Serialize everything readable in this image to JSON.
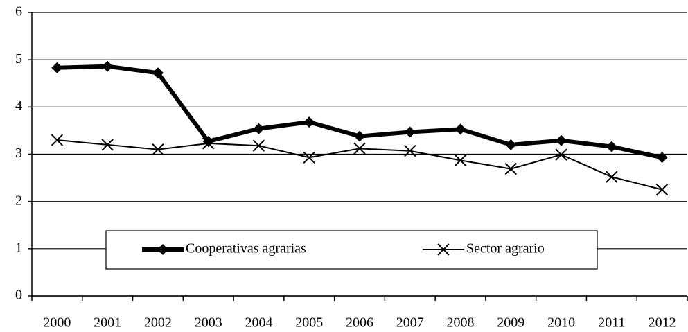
{
  "chart_data": {
    "type": "line",
    "categories": [
      "2000",
      "2001",
      "2002",
      "2003",
      "2004",
      "2005",
      "2006",
      "2007",
      "2008",
      "2009",
      "2010",
      "2011",
      "2012"
    ],
    "series": [
      {
        "name": "Cooperativas agrarias",
        "color": "#000000",
        "marker": "diamond",
        "values": [
          4.83,
          4.86,
          4.72,
          3.27,
          3.54,
          3.68,
          3.38,
          3.47,
          3.53,
          3.2,
          3.29,
          3.16,
          2.93
        ]
      },
      {
        "name": "Sector agrario",
        "color": "#000000",
        "marker": "x",
        "values": [
          3.3,
          3.2,
          3.1,
          3.23,
          3.18,
          2.93,
          3.12,
          3.07,
          2.87,
          2.69,
          2.99,
          2.52,
          2.25
        ]
      }
    ],
    "ylim": [
      0,
      6
    ],
    "yticks": [
      0,
      1,
      2,
      3,
      4,
      5,
      6
    ],
    "grid": true,
    "legend": "bottom"
  }
}
